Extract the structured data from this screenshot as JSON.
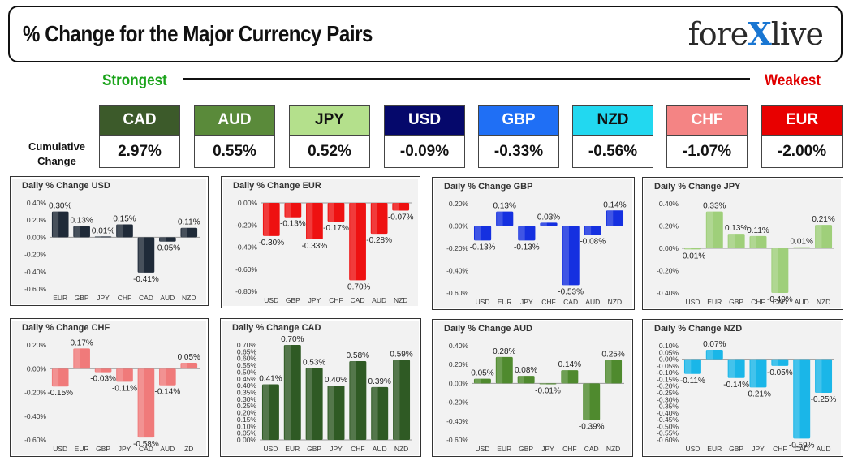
{
  "header": {
    "title": "% Change for the Major Currency Pairs",
    "logo_pre": "fore",
    "logo_x": "X",
    "logo_post": "live"
  },
  "strongest_label": "Strongest",
  "weakest_label": "Weakest",
  "cumulative_label": "Cumulative Change",
  "currencies": [
    {
      "code": "CAD",
      "value": "2.97%",
      "bg": "#3c5a2a",
      "fg": "#ffffff"
    },
    {
      "code": "AUD",
      "value": "0.55%",
      "bg": "#5a8a3a",
      "fg": "#ffffff"
    },
    {
      "code": "JPY",
      "value": "0.52%",
      "bg": "#b4e08c",
      "fg": "#111111"
    },
    {
      "code": "USD",
      "value": "-0.09%",
      "bg": "#05086b",
      "fg": "#ffffff"
    },
    {
      "code": "GBP",
      "value": "-0.33%",
      "bg": "#1f6ff5",
      "fg": "#ffffff"
    },
    {
      "code": "NZD",
      "value": "-0.56%",
      "bg": "#22d8f0",
      "fg": "#111111"
    },
    {
      "code": "CHF",
      "value": "-1.07%",
      "bg": "#f48484",
      "fg": "#ffffff"
    },
    {
      "code": "EUR",
      "value": "-2.00%",
      "bg": "#e80000",
      "fg": "#ffffff"
    }
  ],
  "chart_data": [
    {
      "type": "bar",
      "title": "Daily % Change USD",
      "color": "#1f2a38",
      "categories": [
        "EUR",
        "GBP",
        "JPY",
        "CHF",
        "CAD",
        "AUD",
        "NZD"
      ],
      "values": [
        0.3,
        0.13,
        0.01,
        0.15,
        -0.41,
        -0.05,
        0.11
      ],
      "labels": [
        "0.30%",
        "0.13%",
        "0.01%",
        "0.15%",
        "-0.41%",
        "-0.05%",
        "0.11%"
      ],
      "ylim": [
        -0.6,
        0.4
      ],
      "yticks": [
        -0.6,
        -0.4,
        -0.2,
        0.0,
        0.2,
        0.4
      ],
      "yticklabels": [
        "-0.60%",
        "-0.40%",
        "-0.20%",
        "0.00%",
        "0.20%",
        "0.40%"
      ]
    },
    {
      "type": "bar",
      "title": "Daily % Change EUR",
      "color": "#ee1111",
      "categories": [
        "USD",
        "GBP",
        "JPY",
        "CHF",
        "CAD",
        "AUD",
        "NZD"
      ],
      "values": [
        -0.3,
        -0.13,
        -0.33,
        -0.17,
        -0.7,
        -0.28,
        -0.07
      ],
      "labels": [
        "-0.30%",
        "-0.13%",
        "-0.33%",
        "-0.17%",
        "-0.70%",
        "-0.28%",
        "-0.07%"
      ],
      "ylim": [
        -0.8,
        0.0
      ],
      "yticks": [
        -0.8,
        -0.6,
        -0.4,
        -0.2,
        0.0
      ],
      "yticklabels": [
        "-0.80%",
        "-0.60%",
        "-0.40%",
        "-0.20%",
        "0.00%"
      ]
    },
    {
      "type": "bar",
      "title": "Daily % Change GBP",
      "color": "#1530e0",
      "categories": [
        "USD",
        "EUR",
        "JPY",
        "CHF",
        "CAD",
        "AUD",
        "NZD"
      ],
      "values": [
        -0.13,
        0.13,
        -0.13,
        0.03,
        -0.53,
        -0.08,
        0.14
      ],
      "labels": [
        "-0.13%",
        "0.13%",
        "-0.13%",
        "0.03%",
        "-0.53%",
        "-0.08%",
        "0.14%"
      ],
      "ylim": [
        -0.6,
        0.2
      ],
      "yticks": [
        -0.6,
        -0.4,
        -0.2,
        0.0,
        0.2
      ],
      "yticklabels": [
        "-0.60%",
        "-0.40%",
        "-0.20%",
        "0.00%",
        "0.20%"
      ]
    },
    {
      "type": "bar",
      "title": "Daily % Change JPY",
      "color": "#9fcf7a",
      "categories": [
        "USD",
        "EUR",
        "GBP",
        "CHF",
        "CAD",
        "AUD",
        "NZD"
      ],
      "values": [
        -0.01,
        0.33,
        0.13,
        0.11,
        -0.4,
        0.01,
        0.21
      ],
      "labels": [
        "-0.01%",
        "0.33%",
        "0.13%",
        "0.11%",
        "-0.40%",
        "0.01%",
        "0.21%"
      ],
      "ylim": [
        -0.4,
        0.4
      ],
      "yticks": [
        -0.4,
        -0.2,
        0.0,
        0.2,
        0.4
      ],
      "yticklabels": [
        "-0.40%",
        "-0.20%",
        "0.00%",
        "0.20%",
        "0.40%"
      ]
    },
    {
      "type": "bar",
      "title": "Daily % Change CHF",
      "color": "#f07a7a",
      "categories": [
        "USD",
        "EUR",
        "GBP",
        "JPY",
        "CAD",
        "AUD",
        "ZD"
      ],
      "values": [
        -0.15,
        0.17,
        -0.03,
        -0.11,
        -0.58,
        -0.14,
        0.05
      ],
      "labels": [
        "-0.15%",
        "0.17%",
        "-0.03%",
        "-0.11%",
        "-0.58%",
        "-0.14%",
        "0.05%"
      ],
      "ylim": [
        -0.6,
        0.2
      ],
      "yticks": [
        -0.6,
        -0.4,
        -0.2,
        0.0,
        0.2
      ],
      "yticklabels": [
        "-0.60%",
        "-0.40%",
        "-0.20%",
        "0.00%",
        "0.20%"
      ]
    },
    {
      "type": "bar",
      "title": "Daily % Change CAD",
      "color": "#2f5a24",
      "categories": [
        "USD",
        "EUR",
        "GBP",
        "JPY",
        "CHF",
        "AUD",
        "NZD"
      ],
      "values": [
        0.41,
        0.7,
        0.53,
        0.4,
        0.58,
        0.39,
        0.59
      ],
      "labels": [
        "0.41%",
        "0.70%",
        "0.53%",
        "0.40%",
        "0.58%",
        "0.39%",
        "0.59%"
      ],
      "ylim": [
        0.0,
        0.7
      ],
      "yticks": [
        0.0,
        0.05,
        0.1,
        0.15,
        0.2,
        0.25,
        0.3,
        0.35,
        0.4,
        0.45,
        0.5,
        0.55,
        0.6,
        0.65,
        0.7
      ],
      "yticklabels": [
        "0.00%",
        "0.05%",
        "0.10%",
        "0.15%",
        "0.20%",
        "0.25%",
        "0.30%",
        "0.35%",
        "0.40%",
        "0.45%",
        "0.50%",
        "0.55%",
        "0.60%",
        "0.65%",
        "0.70%"
      ]
    },
    {
      "type": "bar",
      "title": "Daily % Change AUD",
      "color": "#4f8a2e",
      "categories": [
        "USD",
        "EUR",
        "GBP",
        "JPY",
        "CHF",
        "CAD",
        "NZD"
      ],
      "values": [
        0.05,
        0.28,
        0.08,
        -0.01,
        0.14,
        -0.39,
        0.25
      ],
      "labels": [
        "0.05%",
        "0.28%",
        "0.08%",
        "-0.01%",
        "0.14%",
        "-0.39%",
        "0.25%"
      ],
      "ylim": [
        -0.6,
        0.4
      ],
      "yticks": [
        -0.6,
        -0.4,
        -0.2,
        0.0,
        0.2,
        0.4
      ],
      "yticklabels": [
        "-0.60%",
        "-0.40%",
        "-0.20%",
        "0.00%",
        "0.20%",
        "0.40%"
      ]
    },
    {
      "type": "bar",
      "title": "Daily % Change NZD",
      "color": "#1ab6e8",
      "categories": [
        "USD",
        "EUR",
        "GBP",
        "JPY",
        "CHF",
        "CAD",
        "AUD"
      ],
      "values": [
        -0.11,
        0.07,
        -0.14,
        -0.21,
        -0.05,
        -0.59,
        -0.25
      ],
      "labels": [
        "-0.11%",
        "0.07%",
        "-0.14%",
        "-0.21%",
        "-0.05%",
        "-0.59%",
        "-0.25%"
      ],
      "ylim": [
        -0.6,
        0.1
      ],
      "yticks": [
        -0.6,
        -0.55,
        -0.5,
        -0.45,
        -0.4,
        -0.35,
        -0.3,
        -0.25,
        -0.2,
        -0.15,
        -0.1,
        -0.05,
        0.0,
        0.05,
        0.1
      ],
      "yticklabels": [
        "-0.60%",
        "-0.55%",
        "-0.50%",
        "-0.45%",
        "-0.40%",
        "-0.35%",
        "-0.30%",
        "-0.25%",
        "-0.20%",
        "-0.15%",
        "-0.10%",
        "-0.05%",
        "0.00%",
        "0.05%",
        "0.10%"
      ]
    }
  ]
}
